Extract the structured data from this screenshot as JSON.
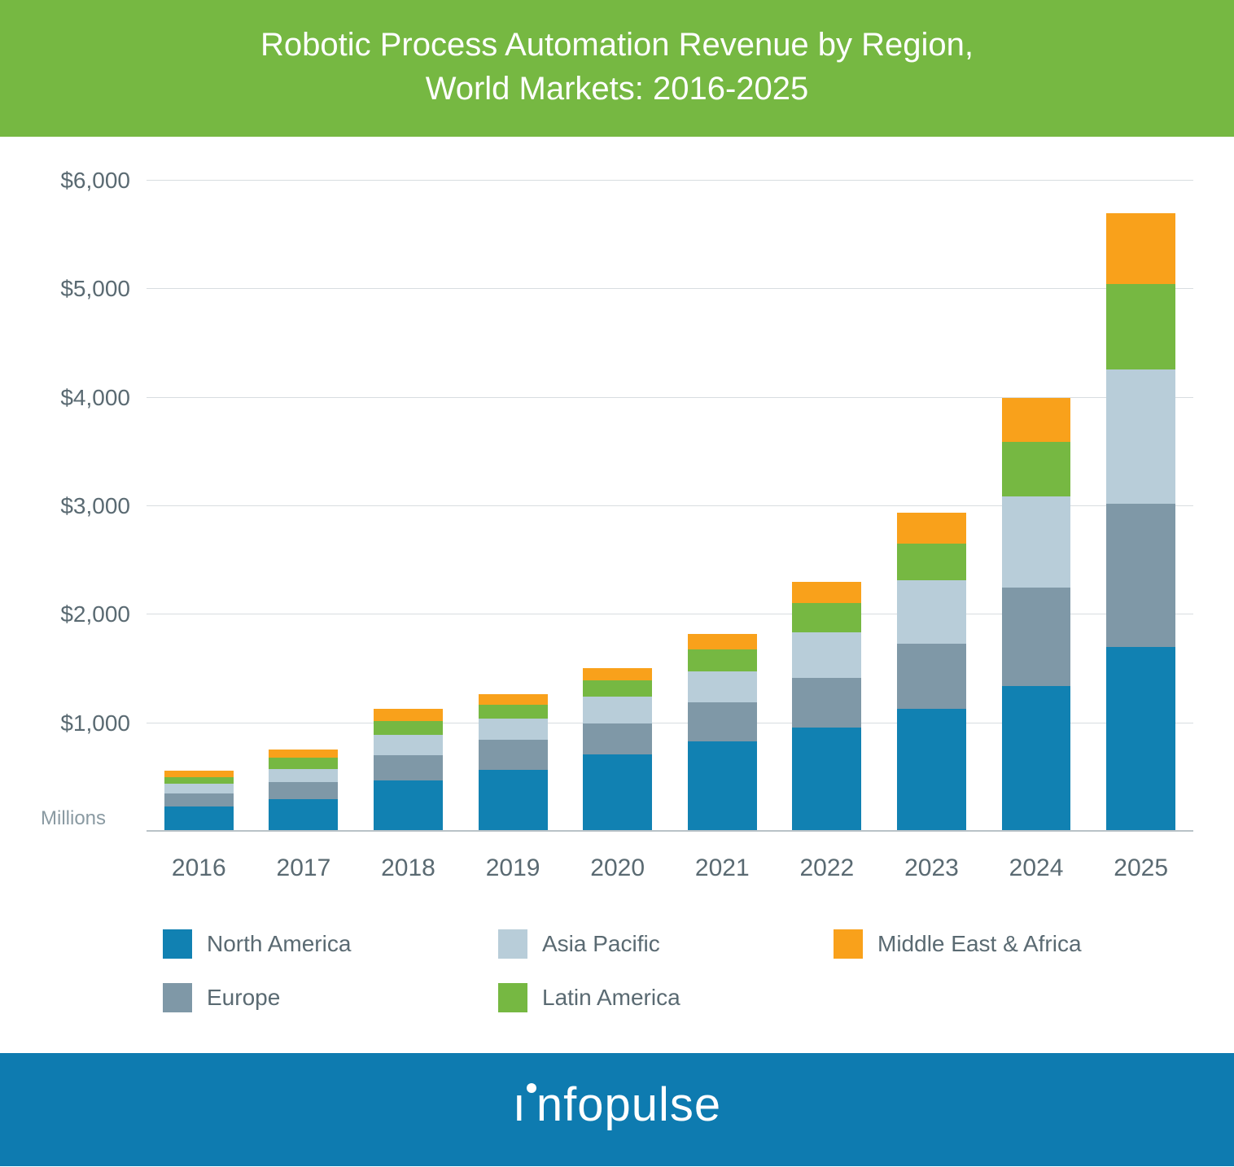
{
  "title": "Robotic Process Automation Revenue by Region,\nWorld Markets: 2016-2025",
  "brand": "infopulse",
  "chart": {
    "type": "stacked-bar",
    "background_color": "#ffffff",
    "title_bg": "#76b842",
    "title_color": "#ffffff",
    "title_fontsize": 40,
    "footer_bg": "#0e7bb0",
    "axis_label_color": "#5a6a72",
    "grid_color": "#d8dde0",
    "baseline_color": "#b9c2c7",
    "y_unit_label": "Millions",
    "y_tick_prefix": "$",
    "ylim": [
      0,
      6000
    ],
    "ytick_step": 1000,
    "y_ticks": [
      1000,
      2000,
      3000,
      4000,
      5000,
      6000
    ],
    "label_fontsize": 30,
    "bar_width_pct": 66,
    "categories": [
      "2016",
      "2017",
      "2018",
      "2019",
      "2020",
      "2021",
      "2022",
      "2023",
      "2024",
      "2025"
    ],
    "series": [
      {
        "key": "north_america",
        "label": "North America",
        "color": "#1181b2"
      },
      {
        "key": "europe",
        "label": "Europe",
        "color": "#7f98a7"
      },
      {
        "key": "asia_pacific",
        "label": "Asia Pacific",
        "color": "#b8cdd9"
      },
      {
        "key": "latin_america",
        "label": "Latin America",
        "color": "#76b842"
      },
      {
        "key": "mea",
        "label": "Middle East & Africa",
        "color": "#f9a11b"
      }
    ],
    "data": {
      "north_america": [
        230,
        300,
        470,
        570,
        710,
        830,
        960,
        1130,
        1340,
        1700
      ],
      "europe": [
        120,
        160,
        235,
        280,
        285,
        360,
        455,
        605,
        910,
        1320
      ],
      "asia_pacific": [
        90,
        115,
        185,
        190,
        250,
        285,
        420,
        580,
        840,
        1240
      ],
      "latin_america": [
        65,
        105,
        130,
        130,
        150,
        205,
        270,
        340,
        500,
        790
      ],
      "mea": [
        55,
        80,
        110,
        100,
        110,
        140,
        200,
        285,
        410,
        650
      ]
    }
  },
  "legend_order": [
    "north_america",
    "asia_pacific",
    "mea",
    "europe",
    "latin_america"
  ]
}
